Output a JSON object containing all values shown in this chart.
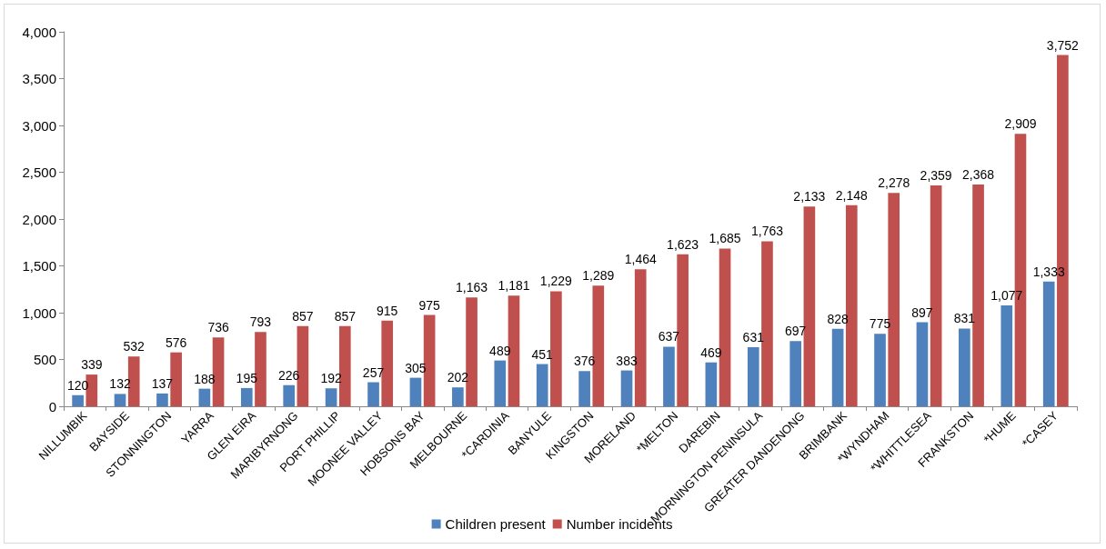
{
  "chart_data": {
    "type": "bar",
    "categories": [
      "NILLUMBIK",
      "BAYSIDE",
      "STONNINGTON",
      "YARRA",
      "GLEN EIRA",
      "MARIBYRNONG",
      "PORT PHILLIP",
      "MOONEE VALLEY",
      "HOBSONS BAY",
      "MELBOURNE",
      "*CARDINIA",
      "BANYULE",
      "KINGSTON",
      "MORELAND",
      "*MELTON",
      "DAREBIN",
      "MORNINGTON PENINSULA",
      "GREATER DANDENONG",
      "BRIMBANK",
      "*WYNDHAM",
      "*WHITTLESEA",
      "FRANKSTON",
      "*HUME",
      "*CASEY"
    ],
    "series": [
      {
        "name": "Children present",
        "color": "#4f81bd",
        "values": [
          120,
          132,
          137,
          188,
          195,
          226,
          192,
          257,
          305,
          202,
          489,
          451,
          376,
          383,
          637,
          469,
          631,
          697,
          828,
          775,
          897,
          831,
          1077,
          1333
        ],
        "value_labels": [
          "120",
          "132",
          "137",
          "188",
          "195",
          "226",
          "192",
          "257",
          "305",
          "202",
          "489",
          "451",
          "376",
          "383",
          "637",
          "469",
          "631",
          "697",
          "828",
          "775",
          "897",
          "831",
          "1,077",
          "1,333"
        ]
      },
      {
        "name": "Number incidents",
        "color": "#c0504d",
        "values": [
          339,
          532,
          576,
          736,
          793,
          857,
          857,
          915,
          975,
          1163,
          1181,
          1229,
          1289,
          1464,
          1623,
          1685,
          1763,
          2133,
          2148,
          2278,
          2359,
          2368,
          2909,
          3752
        ],
        "value_labels": [
          "339",
          "532",
          "576",
          "736",
          "793",
          "857",
          "857",
          "915",
          "975",
          "1,163",
          "1,181",
          "1,229",
          "1,289",
          "1,464",
          "1,623",
          "1,685",
          "1,763",
          "2,133",
          "2,148",
          "2,278",
          "2,359",
          "2,368",
          "2,909",
          "3,752"
        ]
      }
    ],
    "ylim": [
      0,
      4000
    ],
    "yticks": [
      0,
      500,
      {
        "value": 1000,
        "label": "1,000"
      },
      {
        "value": 1500,
        "label": "1,500"
      },
      {
        "value": 2000,
        "label": "2,000"
      },
      {
        "value": 2500,
        "label": "2,500"
      },
      {
        "value": 3000,
        "label": "3,000"
      },
      {
        "value": 3500,
        "label": "3,500"
      },
      {
        "value": 4000,
        "label": "4,000"
      }
    ],
    "grid": false,
    "legend": "bottom"
  }
}
